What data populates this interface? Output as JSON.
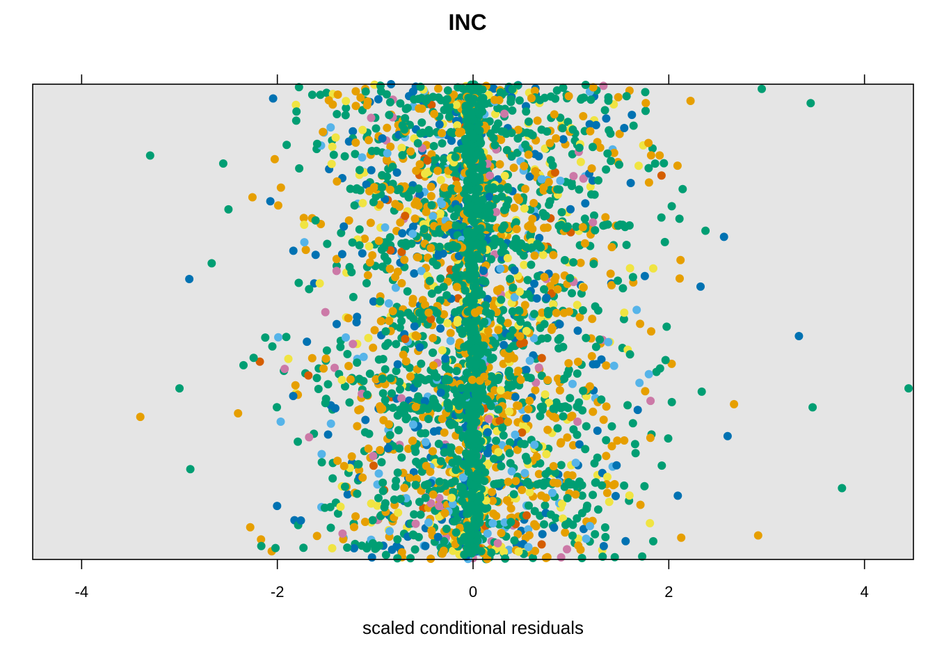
{
  "chart_data": {
    "type": "scatter",
    "title": "INC",
    "xlabel": "scaled conditional residuals",
    "ylabel": "",
    "xlim": [
      -4.5,
      4.5
    ],
    "xticks": [
      -4,
      -2,
      0,
      2,
      4
    ],
    "xtick_labels": [
      "-4",
      "-2",
      "0",
      "2",
      "4"
    ],
    "grid": false,
    "legend": "none",
    "panel_background": "#e5e5e5",
    "series_colors": [
      "#009e73",
      "#e69f00",
      "#0072b2",
      "#f0e442",
      "#56b4e9",
      "#cc79a7",
      "#d55e00"
    ],
    "extreme_points": [
      {
        "x": -3.3,
        "y": 0.85,
        "color": "#009e73"
      },
      {
        "x": -3.4,
        "y": 0.3,
        "color": "#e69f00"
      },
      {
        "x": -3.0,
        "y": 0.36,
        "color": "#009e73"
      },
      {
        "x": -2.9,
        "y": 0.59,
        "color": "#0072b2"
      },
      {
        "x": 3.45,
        "y": 0.96,
        "color": "#009e73"
      },
      {
        "x": 3.33,
        "y": 0.47,
        "color": "#0072b2"
      },
      {
        "x": 3.47,
        "y": 0.32,
        "color": "#009e73"
      },
      {
        "x": 3.77,
        "y": 0.15,
        "color": "#009e73"
      },
      {
        "x": 4.45,
        "y": 0.36,
        "color": "#009e73"
      },
      {
        "x": 2.95,
        "y": 0.99,
        "color": "#009e73"
      }
    ]
  }
}
